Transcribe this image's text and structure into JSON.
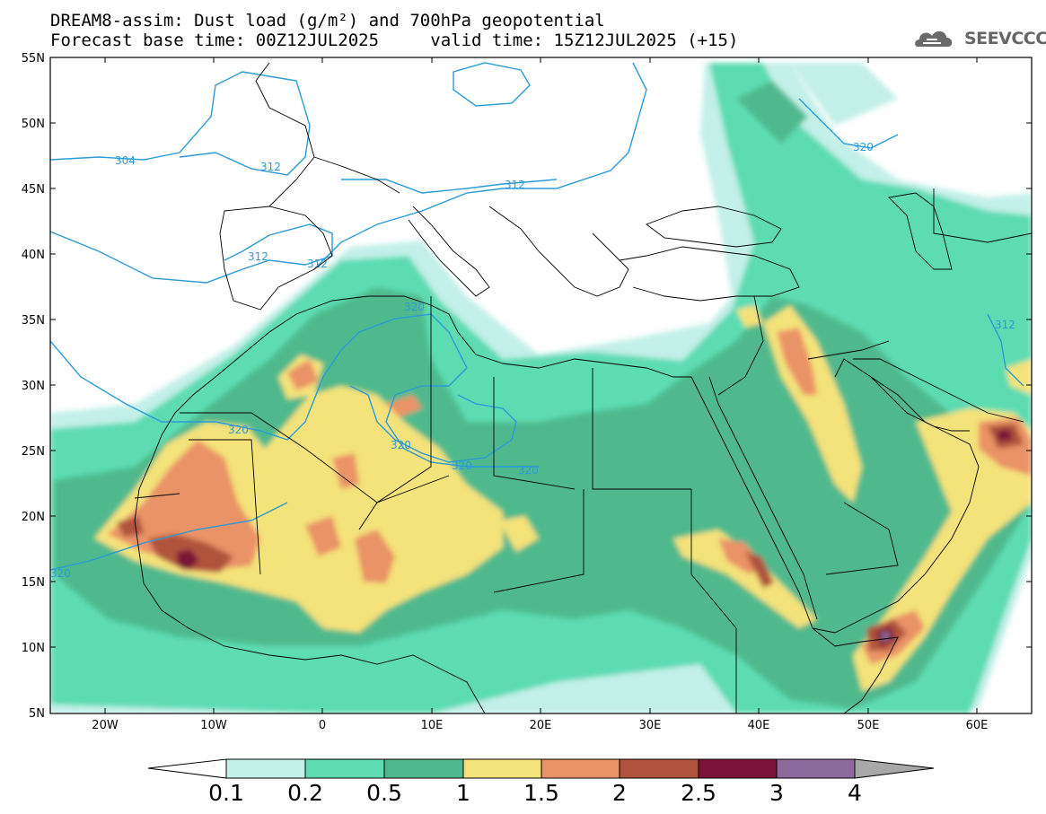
{
  "title": {
    "line1": "DREAM8-assim: Dust load (g/m²) and 700hPa geopotential",
    "base_label": "Forecast base time: 00Z12JUL2025",
    "valid_label": "valid time: 15Z12JUL2025 (+15)"
  },
  "logo": {
    "text": "SEEVCCC"
  },
  "map": {
    "lon_range": [
      -25,
      65
    ],
    "lat_range": [
      5,
      55
    ],
    "lat_ticks": [
      "55N",
      "50N",
      "45N",
      "40N",
      "35N",
      "30N",
      "25N",
      "20N",
      "15N",
      "10N",
      "5N"
    ],
    "lon_ticks": [
      "20W",
      "10W",
      "0",
      "10E",
      "20E",
      "30E",
      "40E",
      "50E",
      "60E"
    ],
    "contour_labels": [
      "304",
      "312",
      "312",
      "312",
      "312",
      "320",
      "320",
      "320",
      "320",
      "320",
      "320",
      "312",
      "320"
    ]
  },
  "colorbar": {
    "labels": [
      "0.1",
      "0.2",
      "0.5",
      "1",
      "1.5",
      "2",
      "2.5",
      "3",
      "4"
    ],
    "colors": [
      "#c3f0e8",
      "#5ddcb2",
      "#4fb98d",
      "#f4e27a",
      "#ea9366",
      "#b0533e",
      "#7b1338",
      "#8c6a9c",
      "#a8a8a8"
    ]
  }
}
